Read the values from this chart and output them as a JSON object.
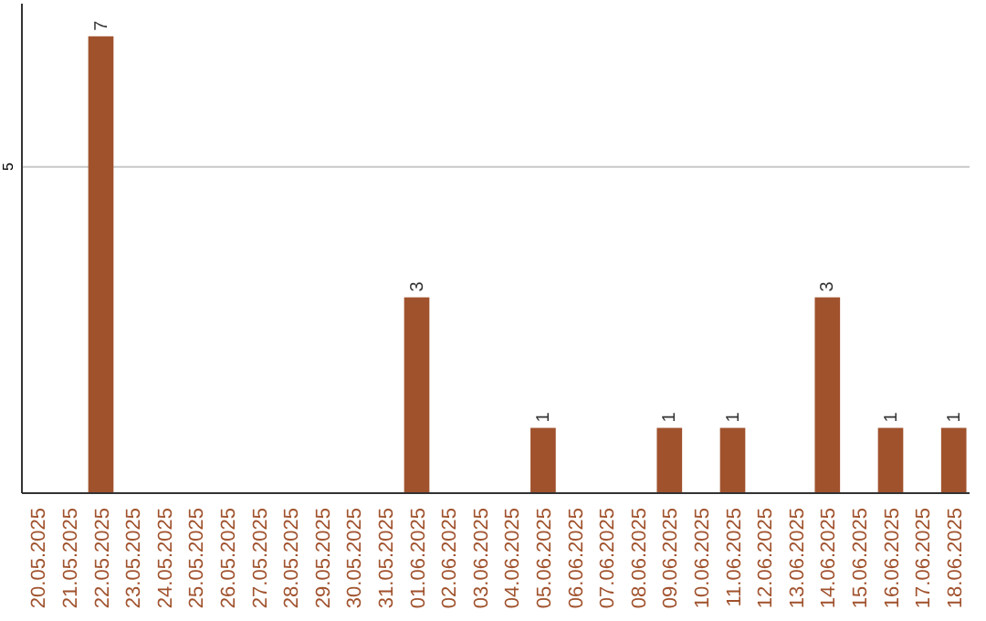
{
  "chart_data": {
    "type": "bar",
    "categories": [
      "20.05.2025",
      "21.05.2025",
      "22.05.2025",
      "23.05.2025",
      "24.05.2025",
      "25.05.2025",
      "26.05.2025",
      "27.05.2025",
      "28.05.2025",
      "29.05.2025",
      "30.05.2025",
      "31.05.2025",
      "01.06.2025",
      "02.06.2025",
      "03.06.2025",
      "04.06.2025",
      "05.06.2025",
      "06.06.2025",
      "07.06.2025",
      "08.06.2025",
      "09.06.2025",
      "10.06.2025",
      "11.06.2025",
      "12.06.2025",
      "13.06.2025",
      "14.06.2025",
      "15.06.2025",
      "16.06.2025",
      "17.06.2025",
      "18.06.2025"
    ],
    "values": [
      0,
      0,
      7,
      0,
      0,
      0,
      0,
      0,
      0,
      0,
      0,
      0,
      3,
      0,
      0,
      0,
      1,
      0,
      0,
      0,
      1,
      0,
      1,
      0,
      0,
      3,
      0,
      1,
      0,
      1
    ],
    "value_labels": [
      null,
      null,
      "7",
      null,
      null,
      null,
      null,
      null,
      null,
      null,
      null,
      null,
      "3",
      null,
      null,
      null,
      "1",
      null,
      null,
      null,
      "1",
      null,
      "1",
      null,
      null,
      "3",
      null,
      "1",
      null,
      "1"
    ],
    "color": "#a0522d",
    "ylim": [
      0,
      7.5
    ],
    "yticks": [
      5
    ],
    "grid": "y"
  }
}
